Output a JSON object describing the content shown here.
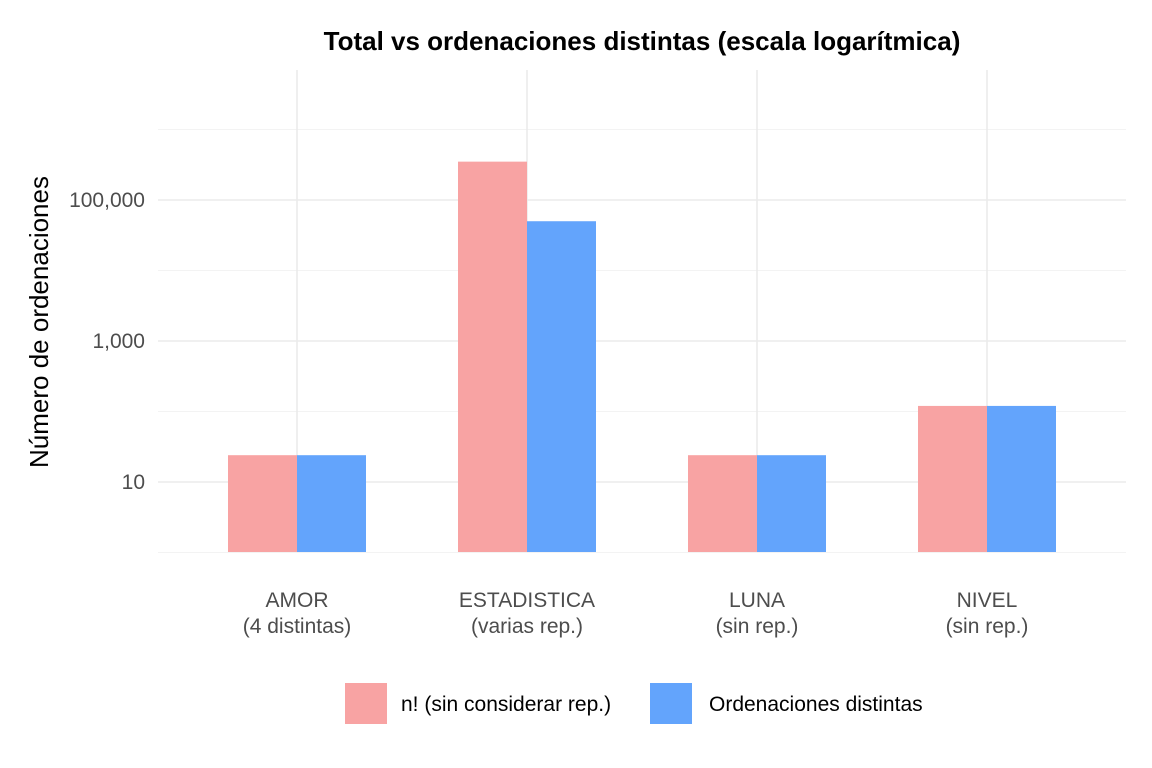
{
  "chart_data": {
    "type": "bar",
    "title": "Total vs ordenaciones distintas (escala logarítmica)",
    "xlabel": "",
    "ylabel": "Número de ordenaciones",
    "y_scale": "log10",
    "ylim": [
      1,
      1000000
    ],
    "y_ticks": [
      {
        "value": 10,
        "label": "10"
      },
      {
        "value": 1000,
        "label": "1,000"
      },
      {
        "value": 100000,
        "label": "100,000"
      }
    ],
    "categories": [
      {
        "line1": "AMOR",
        "line2": "(4 distintas)"
      },
      {
        "line1": "ESTADISTICA",
        "line2": "(varias rep.)"
      },
      {
        "line1": "LUNA",
        "line2": "(sin rep.)"
      },
      {
        "line1": "NIVEL",
        "line2": "(sin rep.)"
      }
    ],
    "series": [
      {
        "name": "n! (sin considerar rep.)",
        "color": "#F8A3A3",
        "values": [
          24,
          350000,
          24,
          120
        ]
      },
      {
        "name": "Ordenaciones distintas",
        "color": "#63A4FC",
        "values": [
          24,
          50000,
          24,
          120
        ]
      }
    ],
    "grid": true,
    "legend_position": "bottom"
  }
}
